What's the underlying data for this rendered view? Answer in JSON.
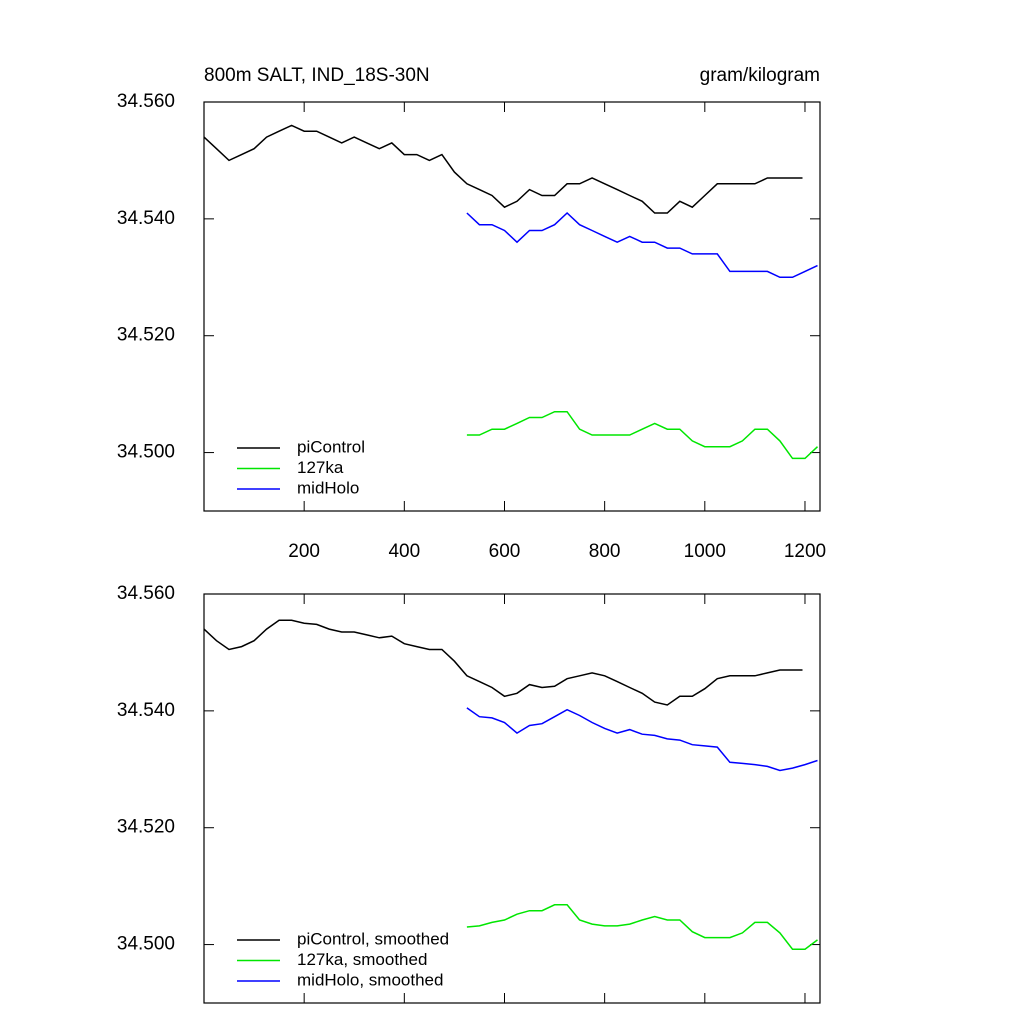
{
  "chart_data": [
    {
      "type": "line",
      "title": "800m SALT, IND_18S-30N",
      "subtitle": "gram/kilogram",
      "xlim": [
        0,
        1230
      ],
      "xticks": [
        200,
        400,
        600,
        800,
        1000,
        1200
      ],
      "ylim": [
        34.49,
        34.56
      ],
      "yticks": [
        {
          "value": 34.5,
          "label": "34.500"
        },
        {
          "value": 34.52,
          "label": "34.520"
        },
        {
          "value": 34.54,
          "label": "34.540"
        },
        {
          "value": 34.56,
          "label": "34.560"
        }
      ],
      "legend": "lower left",
      "series": [
        {
          "name": "piControl",
          "color": "#000000",
          "x": [
            0,
            25,
            50,
            75,
            100,
            125,
            150,
            175,
            200,
            225,
            250,
            275,
            300,
            325,
            350,
            375,
            400,
            425,
            450,
            475,
            500,
            525,
            550,
            575,
            600,
            625,
            650,
            675,
            700,
            725,
            750,
            775,
            800,
            825,
            850,
            875,
            900,
            925,
            950,
            975,
            1000,
            1025,
            1050,
            1075,
            1100,
            1125,
            1150,
            1175,
            1195
          ],
          "values": [
            34.554,
            34.552,
            34.55,
            34.551,
            34.552,
            34.554,
            34.555,
            34.556,
            34.555,
            34.555,
            34.554,
            34.553,
            34.554,
            34.553,
            34.552,
            34.553,
            34.551,
            34.551,
            34.55,
            34.551,
            34.548,
            34.546,
            34.545,
            34.544,
            34.542,
            34.543,
            34.545,
            34.544,
            34.544,
            34.546,
            34.546,
            34.547,
            34.546,
            34.545,
            34.544,
            34.543,
            34.541,
            34.541,
            34.543,
            34.542,
            34.544,
            34.546,
            34.546,
            34.546,
            34.546,
            34.547,
            34.547,
            34.547,
            34.547
          ]
        },
        {
          "name": "127ka",
          "color": "#00e600",
          "x": [
            525,
            550,
            575,
            600,
            625,
            650,
            675,
            700,
            725,
            750,
            775,
            800,
            825,
            850,
            875,
            900,
            925,
            950,
            975,
            1000,
            1025,
            1050,
            1075,
            1100,
            1125,
            1150,
            1175,
            1200,
            1225
          ],
          "values": [
            34.503,
            34.503,
            34.504,
            34.504,
            34.505,
            34.506,
            34.506,
            34.507,
            34.507,
            34.504,
            34.503,
            34.503,
            34.503,
            34.503,
            34.504,
            34.505,
            34.504,
            34.504,
            34.502,
            34.501,
            34.501,
            34.501,
            34.502,
            34.504,
            34.504,
            34.502,
            34.499,
            34.499,
            34.501
          ]
        },
        {
          "name": "midHolo",
          "color": "#0000ff",
          "x": [
            525,
            550,
            575,
            600,
            625,
            650,
            675,
            700,
            725,
            750,
            775,
            800,
            825,
            850,
            875,
            900,
            925,
            950,
            975,
            1000,
            1025,
            1050,
            1075,
            1100,
            1125,
            1150,
            1175,
            1200,
            1225
          ],
          "values": [
            34.541,
            34.539,
            34.539,
            34.538,
            34.536,
            34.538,
            34.538,
            34.539,
            34.541,
            34.539,
            34.538,
            34.537,
            34.536,
            34.537,
            34.536,
            34.536,
            34.535,
            34.535,
            34.534,
            34.534,
            34.534,
            34.531,
            34.531,
            34.531,
            34.531,
            34.53,
            34.53,
            34.531,
            34.532
          ]
        }
      ]
    },
    {
      "type": "line",
      "xlim": [
        0,
        1230
      ],
      "ylim": [
        34.49,
        34.56
      ],
      "yticks": [
        {
          "value": 34.5,
          "label": "34.500"
        },
        {
          "value": 34.52,
          "label": "34.520"
        },
        {
          "value": 34.54,
          "label": "34.540"
        },
        {
          "value": 34.56,
          "label": "34.560"
        }
      ],
      "legend": "lower left",
      "series": [
        {
          "name": "piControl, smoothed",
          "color": "#000000",
          "x": [
            0,
            25,
            50,
            75,
            100,
            125,
            150,
            175,
            200,
            225,
            250,
            275,
            300,
            325,
            350,
            375,
            400,
            425,
            450,
            475,
            500,
            525,
            550,
            575,
            600,
            625,
            650,
            675,
            700,
            725,
            750,
            775,
            800,
            825,
            850,
            875,
            900,
            925,
            950,
            975,
            1000,
            1025,
            1050,
            1075,
            1100,
            1125,
            1150,
            1175,
            1195
          ],
          "values": [
            34.554,
            34.552,
            34.5505,
            34.551,
            34.552,
            34.554,
            34.5555,
            34.5555,
            34.555,
            34.5548,
            34.554,
            34.5535,
            34.5535,
            34.553,
            34.5525,
            34.5528,
            34.5515,
            34.551,
            34.5505,
            34.5505,
            34.5485,
            34.546,
            34.545,
            34.544,
            34.5425,
            34.543,
            34.5445,
            34.544,
            34.5442,
            34.5455,
            34.546,
            34.5465,
            34.546,
            34.545,
            34.544,
            34.543,
            34.5415,
            34.541,
            34.5425,
            34.5425,
            34.5438,
            34.5455,
            34.546,
            34.546,
            34.546,
            34.5465,
            34.547,
            34.547,
            34.547
          ]
        },
        {
          "name": "127ka, smoothed",
          "color": "#00e600",
          "x": [
            525,
            550,
            575,
            600,
            625,
            650,
            675,
            700,
            725,
            750,
            775,
            800,
            825,
            850,
            875,
            900,
            925,
            950,
            975,
            1000,
            1025,
            1050,
            1075,
            1100,
            1125,
            1150,
            1175,
            1200,
            1225
          ],
          "values": [
            34.503,
            34.5032,
            34.5038,
            34.5042,
            34.5052,
            34.5058,
            34.5058,
            34.5068,
            34.5068,
            34.5042,
            34.5035,
            34.5032,
            34.5032,
            34.5035,
            34.5042,
            34.5048,
            34.5042,
            34.5042,
            34.5022,
            34.5012,
            34.5012,
            34.5012,
            34.502,
            34.5038,
            34.5038,
            34.502,
            34.4992,
            34.4992,
            34.5008
          ]
        },
        {
          "name": "midHolo, smoothed",
          "color": "#0000ff",
          "x": [
            525,
            550,
            575,
            600,
            625,
            650,
            675,
            700,
            725,
            750,
            775,
            800,
            825,
            850,
            875,
            900,
            925,
            950,
            975,
            1000,
            1025,
            1050,
            1075,
            1100,
            1125,
            1150,
            1175,
            1200,
            1225
          ],
          "values": [
            34.5405,
            34.539,
            34.5388,
            34.538,
            34.5362,
            34.5375,
            34.5378,
            34.539,
            34.5402,
            34.5392,
            34.538,
            34.537,
            34.5362,
            34.5368,
            34.536,
            34.5358,
            34.5352,
            34.535,
            34.5342,
            34.534,
            34.5338,
            34.5312,
            34.531,
            34.5308,
            34.5305,
            34.5298,
            34.5302,
            34.5308,
            34.5315
          ]
        }
      ]
    }
  ]
}
